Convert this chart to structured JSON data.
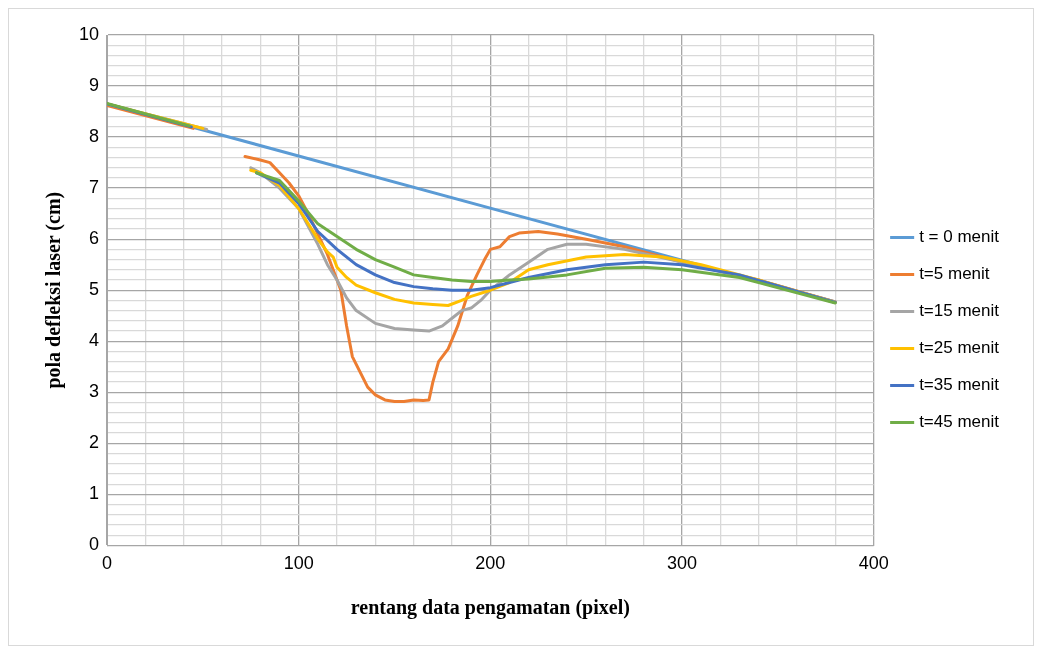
{
  "chart_data": {
    "type": "line",
    "xlabel": "rentang data pengamatan (pixel)",
    "ylabel": "pola defleksi laser (cm)",
    "xlim": [
      0,
      400
    ],
    "xticks": [
      0,
      {
        "value": 20,
        "label": null
      },
      {
        "value": 40,
        "label": null
      },
      {
        "value": 60,
        "label": null
      },
      {
        "value": 80,
        "label": null
      },
      100,
      {
        "value": 120,
        "label": null
      },
      {
        "value": 140,
        "label": null
      },
      {
        "value": 160,
        "label": null
      },
      {
        "value": 180,
        "label": null
      },
      200,
      {
        "value": 220,
        "label": null
      },
      {
        "value": 240,
        "label": null
      },
      {
        "value": 260,
        "label": null
      },
      {
        "value": 280,
        "label": null
      },
      300,
      {
        "value": 320,
        "label": null
      },
      {
        "value": 340,
        "label": null
      },
      {
        "value": 360,
        "label": null
      },
      {
        "value": 380,
        "label": null
      },
      400
    ],
    "ylim": [
      0,
      10
    ],
    "yticks": [
      0,
      {
        "value": 0.2,
        "label": null
      },
      {
        "value": 0.4,
        "label": null
      },
      {
        "value": 0.6,
        "label": null
      },
      {
        "value": 0.8,
        "label": null
      },
      1,
      {
        "value": 1.2,
        "label": null
      },
      {
        "value": 1.4,
        "label": null
      },
      {
        "value": 1.6,
        "label": null
      },
      {
        "value": 1.8,
        "label": null
      },
      2,
      {
        "value": 2.2,
        "label": null
      },
      {
        "value": 2.4,
        "label": null
      },
      {
        "value": 2.6,
        "label": null
      },
      {
        "value": 2.8,
        "label": null
      },
      3,
      {
        "value": 3.2,
        "label": null
      },
      {
        "value": 3.4,
        "label": null
      },
      {
        "value": 3.6,
        "label": null
      },
      {
        "value": 3.8,
        "label": null
      },
      4,
      {
        "value": 4.2,
        "label": null
      },
      {
        "value": 4.4,
        "label": null
      },
      {
        "value": 4.6,
        "label": null
      },
      {
        "value": 4.8,
        "label": null
      },
      5,
      {
        "value": 5.2,
        "label": null
      },
      {
        "value": 5.4,
        "label": null
      },
      {
        "value": 5.6,
        "label": null
      },
      {
        "value": 5.8,
        "label": null
      },
      6,
      {
        "value": 6.2,
        "label": null
      },
      {
        "value": 6.4,
        "label": null
      },
      {
        "value": 6.6,
        "label": null
      },
      {
        "value": 6.8,
        "label": null
      },
      7,
      {
        "value": 7.2,
        "label": null
      },
      {
        "value": 7.4,
        "label": null
      },
      {
        "value": 7.6,
        "label": null
      },
      {
        "value": 7.8,
        "label": null
      },
      8,
      {
        "value": 8.2,
        "label": null
      },
      {
        "value": 8.4,
        "label": null
      },
      {
        "value": 8.6,
        "label": null
      },
      {
        "value": 8.8,
        "label": null
      },
      9,
      {
        "value": 9.2,
        "label": null
      },
      {
        "value": 9.4,
        "label": null
      },
      {
        "value": 9.6,
        "label": null
      },
      {
        "value": 9.8,
        "label": null
      },
      10
    ],
    "grid": true,
    "legend": "right",
    "marker": "none",
    "line_style": "solid",
    "series": [
      {
        "name": "t = 0 menit",
        "color": "#5b9bd5",
        "x": [
          0,
          380
        ],
        "values": [
          8.65,
          4.77
        ]
      },
      {
        "name": "t=5 menit",
        "color": "#ed7d31",
        "x": [
          0,
          45,
          60,
          72,
          80,
          85,
          90,
          95,
          100,
          105,
          110,
          115,
          118,
          122,
          125,
          128,
          132,
          136,
          140,
          145,
          150,
          155,
          160,
          165,
          168,
          170,
          173,
          178,
          183,
          188,
          193,
          197,
          200,
          205,
          210,
          215,
          225,
          235,
          250,
          270,
          300,
          340,
          380
        ],
        "values": [
          8.62,
          8.17,
          null,
          7.62,
          7.55,
          7.5,
          7.3,
          7.1,
          6.85,
          6.5,
          6.1,
          5.7,
          5.4,
          5.0,
          4.3,
          3.7,
          3.4,
          3.1,
          2.95,
          2.85,
          2.82,
          2.82,
          2.85,
          2.84,
          2.85,
          3.2,
          3.6,
          3.85,
          4.3,
          4.9,
          5.3,
          5.6,
          5.8,
          5.85,
          6.05,
          6.12,
          6.15,
          6.1,
          6.0,
          5.85,
          5.55,
          5.2,
          4.77
        ]
      },
      {
        "name": "t=15 menit",
        "color": "#a5a5a5",
        "x": [
          0,
          52,
          64,
          75,
          80,
          90,
          100,
          110,
          115,
          120,
          125,
          130,
          140,
          150,
          160,
          168,
          175,
          180,
          185,
          190,
          195,
          200,
          210,
          220,
          230,
          240,
          250,
          270,
          300,
          340,
          380
        ],
        "values": [
          8.65,
          8.15,
          null,
          7.4,
          7.3,
          7.0,
          6.6,
          5.9,
          5.5,
          5.2,
          4.85,
          4.6,
          4.35,
          4.25,
          4.22,
          4.2,
          4.3,
          4.45,
          4.6,
          4.65,
          4.8,
          5.0,
          5.3,
          5.55,
          5.8,
          5.9,
          5.9,
          5.8,
          5.55,
          5.18,
          4.77
        ]
      },
      {
        "name": "t=25 menit",
        "color": "#ffc000",
        "x": [
          0,
          50,
          62,
          75,
          80,
          90,
          100,
          110,
          115,
          118,
          120,
          125,
          130,
          140,
          150,
          160,
          170,
          178,
          185,
          190,
          200,
          210,
          220,
          230,
          250,
          270,
          290,
          310,
          340,
          380
        ],
        "values": [
          8.65,
          8.17,
          null,
          7.35,
          7.3,
          7.05,
          6.6,
          6.0,
          5.75,
          5.65,
          5.45,
          5.25,
          5.1,
          4.95,
          4.82,
          4.75,
          4.72,
          4.7,
          4.8,
          4.88,
          5.0,
          5.15,
          5.4,
          5.5,
          5.65,
          5.7,
          5.65,
          5.5,
          5.2,
          4.76
        ]
      },
      {
        "name": "t=35 menit",
        "color": "#4472c4",
        "x": [
          0,
          44,
          60,
          78,
          90,
          100,
          110,
          120,
          130,
          140,
          150,
          160,
          170,
          180,
          190,
          200,
          210,
          220,
          240,
          260,
          280,
          300,
          330,
          380
        ],
        "values": [
          8.65,
          8.2,
          null,
          7.3,
          7.1,
          6.7,
          6.15,
          5.8,
          5.5,
          5.3,
          5.15,
          5.07,
          5.03,
          5.0,
          5.0,
          5.05,
          5.15,
          5.25,
          5.4,
          5.5,
          5.55,
          5.5,
          5.3,
          4.76
        ]
      },
      {
        "name": "t=45 menit",
        "color": "#70ad47",
        "x": [
          0,
          43,
          60,
          78,
          90,
          100,
          110,
          120,
          130,
          140,
          150,
          160,
          170,
          180,
          190,
          200,
          210,
          220,
          240,
          260,
          280,
          300,
          330,
          380
        ],
        "values": [
          8.66,
          8.22,
          null,
          7.3,
          7.15,
          6.75,
          6.3,
          6.05,
          5.8,
          5.6,
          5.45,
          5.3,
          5.25,
          5.2,
          5.17,
          5.17,
          5.2,
          5.22,
          5.3,
          5.43,
          5.45,
          5.4,
          5.25,
          4.75
        ]
      }
    ]
  }
}
